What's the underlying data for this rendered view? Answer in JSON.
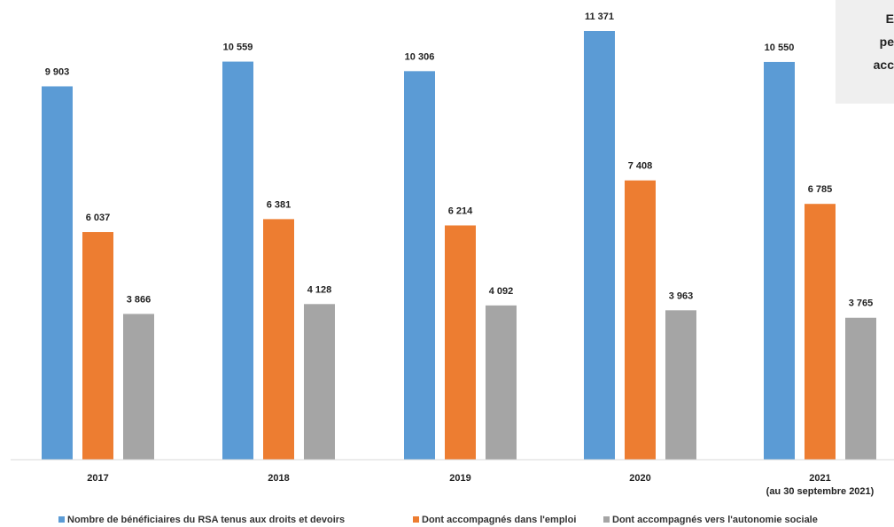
{
  "chart_data": {
    "type": "bar",
    "categories": [
      "2017",
      "2018",
      "2019",
      "2020",
      "2021"
    ],
    "category_sublabels": [
      "",
      "",
      "",
      "",
      "(au 30 septembre 2021)"
    ],
    "series": [
      {
        "name": "Nombre de bénéficiaires du RSA tenus aux droits et devoirs",
        "values": [
          9903,
          10559,
          10306,
          11371,
          10550
        ],
        "labels": [
          "9 903",
          "10 559",
          "10 306",
          "11 371",
          "10 550"
        ],
        "color": "#5b9bd5"
      },
      {
        "name": "Dont accompagnés dans l'emploi",
        "values": [
          6037,
          6381,
          6214,
          7408,
          6785
        ],
        "labels": [
          "6 037",
          "6 381",
          "6 214",
          "7 408",
          "6 785"
        ],
        "color": "#ed7d31"
      },
      {
        "name": "Dont accompagnés vers l'autonomie sociale",
        "values": [
          3866,
          4128,
          4092,
          3963,
          3765
        ],
        "labels": [
          "3 866",
          "4 128",
          "4 092",
          "3 963",
          "3 765"
        ],
        "color": "#a5a5a5"
      }
    ],
    "ylim": [
      0,
      11371
    ],
    "grid": false,
    "legend_position": "bottom",
    "callout": {
      "lines": [
        "E",
        "pe",
        "acc"
      ],
      "background": "#efefef"
    }
  }
}
